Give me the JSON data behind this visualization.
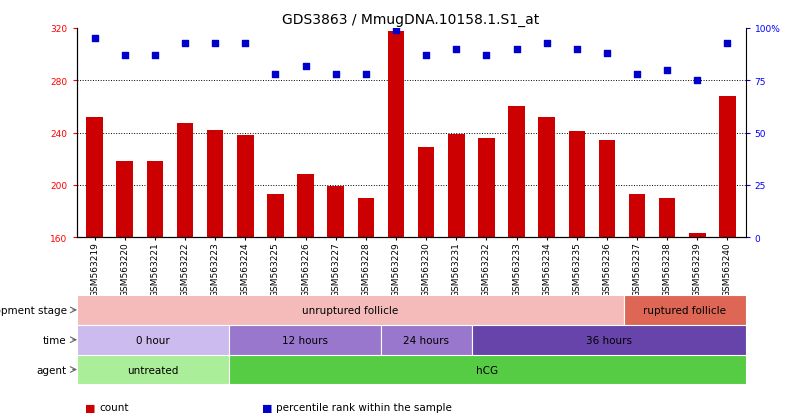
{
  "title": "GDS3863 / MmugDNA.10158.1.S1_at",
  "samples": [
    "GSM563219",
    "GSM563220",
    "GSM563221",
    "GSM563222",
    "GSM563223",
    "GSM563224",
    "GSM563225",
    "GSM563226",
    "GSM563227",
    "GSM563228",
    "GSM563229",
    "GSM563230",
    "GSM563231",
    "GSM563232",
    "GSM563233",
    "GSM563234",
    "GSM563235",
    "GSM563236",
    "GSM563237",
    "GSM563238",
    "GSM563239",
    "GSM563240"
  ],
  "bar_values": [
    252,
    218,
    218,
    247,
    242,
    238,
    193,
    208,
    199,
    190,
    318,
    229,
    239,
    236,
    260,
    252,
    241,
    234,
    193,
    190,
    163,
    268
  ],
  "percentile_values": [
    95,
    87,
    87,
    93,
    93,
    93,
    78,
    82,
    78,
    78,
    99,
    87,
    90,
    87,
    90,
    93,
    90,
    88,
    78,
    80,
    75,
    93
  ],
  "bar_color": "#cc0000",
  "dot_color": "#0000cc",
  "ylim_left": [
    160,
    320
  ],
  "ylim_right": [
    0,
    100
  ],
  "yticks_left": [
    160,
    200,
    240,
    280,
    320
  ],
  "yticks_right": [
    0,
    25,
    50,
    75,
    100
  ],
  "ytick_right_labels": [
    "0",
    "25",
    "50",
    "75",
    "100%"
  ],
  "grid_values": [
    200,
    240,
    280
  ],
  "agent_segments": [
    {
      "text": "untreated",
      "start": 0,
      "end": 5,
      "color": "#aaee99"
    },
    {
      "text": "hCG",
      "start": 5,
      "end": 22,
      "color": "#55cc44"
    }
  ],
  "time_segments": [
    {
      "text": "0 hour",
      "start": 0,
      "end": 5,
      "color": "#ccbbee"
    },
    {
      "text": "12 hours",
      "start": 5,
      "end": 10,
      "color": "#9977cc"
    },
    {
      "text": "24 hours",
      "start": 10,
      "end": 13,
      "color": "#9977cc"
    },
    {
      "text": "36 hours",
      "start": 13,
      "end": 22,
      "color": "#6644aa"
    }
  ],
  "dev_segments": [
    {
      "text": "unruptured follicle",
      "start": 0,
      "end": 18,
      "color": "#f5bbbb"
    },
    {
      "text": "ruptured follicle",
      "start": 18,
      "end": 22,
      "color": "#dd6655"
    }
  ],
  "row_labels": [
    "agent",
    "time",
    "development stage"
  ],
  "legend_items": [
    {
      "color": "#cc0000",
      "label": "count"
    },
    {
      "color": "#0000cc",
      "label": "percentile rank within the sample"
    }
  ],
  "background_color": "#ffffff",
  "title_fontsize": 10,
  "tick_fontsize": 6.5,
  "annotation_fontsize": 7.5,
  "label_fontsize": 7.5
}
